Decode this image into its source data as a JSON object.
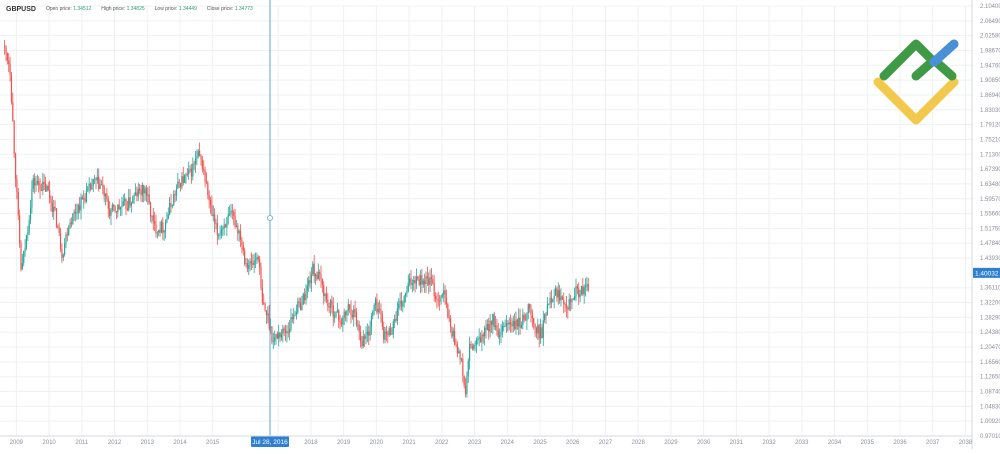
{
  "header": {
    "symbol": "GBPUSD",
    "open_label": "Open price:",
    "open_value": "1.34512",
    "high_label": "High price:",
    "high_value": "1.34825",
    "low_label": "Low price:",
    "low_value": "1.34449",
    "close_label": "Close price:",
    "close_value": "1.34773"
  },
  "colors": {
    "up": "#26a69a",
    "down": "#ef5350",
    "crosshair": "#5aa6e0",
    "price_badge": "#2f80d1",
    "grid": "#eef0f3",
    "axis_text": "#8a8f99",
    "logo_green": "#3f9a46",
    "logo_yellow": "#f2c94c",
    "logo_blue": "#4a90d9"
  },
  "chart_data": {
    "type": "candlestick",
    "title": "GBPUSD",
    "timeframe": "monthly",
    "x_ticks": [
      "2009",
      "2010",
      "2011",
      "2012",
      "2013",
      "2014",
      "2015",
      "Jul 28, 2016",
      "2018",
      "2019",
      "2020",
      "2021",
      "2022",
      "2023",
      "2024",
      "2025",
      "2026",
      "2027",
      "2028",
      "2029",
      "2030",
      "2031",
      "2032",
      "2033",
      "2034",
      "2035",
      "2036",
      "2037",
      "2038"
    ],
    "y_ticks": [
      "2.10400",
      "2.06490",
      "2.02580",
      "1.98670",
      "1.94760",
      "1.90850",
      "1.86940",
      "1.83030",
      "1.79120",
      "1.75210",
      "1.71300",
      "1.67390",
      "1.63480",
      "1.59570",
      "1.55660",
      "1.51750",
      "1.47840",
      "1.43930",
      "1.40032",
      "1.36110",
      "1.32200",
      "1.28290",
      "1.24380",
      "1.20470",
      "1.16560",
      "1.12650",
      "1.08740",
      "1.04830",
      "1.00920",
      "0.97010"
    ],
    "ylim": [
      0.9701,
      2.104
    ],
    "xlim": [
      2008.5,
      2038.2
    ],
    "grid": true,
    "current_price": "1.40032",
    "crosshair_date": "Jul 28, 2016",
    "anchors": [
      [
        2008.6,
        2.0
      ],
      [
        2008.8,
        1.95
      ],
      [
        2008.95,
        1.7
      ],
      [
        2009.15,
        1.4
      ],
      [
        2009.35,
        1.52
      ],
      [
        2009.5,
        1.64
      ],
      [
        2009.75,
        1.63
      ],
      [
        2009.95,
        1.62
      ],
      [
        2010.2,
        1.55
      ],
      [
        2010.4,
        1.45
      ],
      [
        2010.6,
        1.53
      ],
      [
        2010.85,
        1.57
      ],
      [
        2011.15,
        1.61
      ],
      [
        2011.4,
        1.64
      ],
      [
        2011.6,
        1.63
      ],
      [
        2011.85,
        1.56
      ],
      [
        2012.1,
        1.57
      ],
      [
        2012.4,
        1.58
      ],
      [
        2012.7,
        1.61
      ],
      [
        2012.95,
        1.62
      ],
      [
        2013.2,
        1.52
      ],
      [
        2013.5,
        1.52
      ],
      [
        2013.8,
        1.6
      ],
      [
        2014.0,
        1.64
      ],
      [
        2014.3,
        1.66
      ],
      [
        2014.55,
        1.71
      ],
      [
        2014.7,
        1.68
      ],
      [
        2014.95,
        1.56
      ],
      [
        2015.15,
        1.5
      ],
      [
        2015.35,
        1.53
      ],
      [
        2015.6,
        1.55
      ],
      [
        2015.85,
        1.5
      ],
      [
        2016.0,
        1.43
      ],
      [
        2016.2,
        1.42
      ],
      [
        2016.4,
        1.45
      ],
      [
        2016.5,
        1.32
      ],
      [
        2016.7,
        1.28
      ],
      [
        2016.85,
        1.22
      ],
      [
        2017.0,
        1.24
      ],
      [
        2017.3,
        1.25
      ],
      [
        2017.5,
        1.3
      ],
      [
        2017.7,
        1.32
      ],
      [
        2017.85,
        1.35
      ],
      [
        2018.05,
        1.41
      ],
      [
        2018.3,
        1.38
      ],
      [
        2018.5,
        1.32
      ],
      [
        2018.7,
        1.3
      ],
      [
        2018.95,
        1.27
      ],
      [
        2019.15,
        1.31
      ],
      [
        2019.35,
        1.29
      ],
      [
        2019.55,
        1.22
      ],
      [
        2019.75,
        1.24
      ],
      [
        2019.95,
        1.32
      ],
      [
        2020.1,
        1.3
      ],
      [
        2020.25,
        1.23
      ],
      [
        2020.45,
        1.25
      ],
      [
        2020.65,
        1.3
      ],
      [
        2020.85,
        1.33
      ],
      [
        2021.0,
        1.37
      ],
      [
        2021.2,
        1.39
      ],
      [
        2021.45,
        1.38
      ],
      [
        2021.65,
        1.38
      ],
      [
        2021.85,
        1.33
      ],
      [
        2022.05,
        1.35
      ],
      [
        2022.25,
        1.26
      ],
      [
        2022.45,
        1.21
      ],
      [
        2022.6,
        1.16
      ],
      [
        2022.72,
        1.08
      ],
      [
        2022.85,
        1.2
      ],
      [
        2023.05,
        1.21
      ],
      [
        2023.3,
        1.24
      ],
      [
        2023.55,
        1.28
      ],
      [
        2023.75,
        1.22
      ],
      [
        2023.95,
        1.27
      ],
      [
        2024.2,
        1.26
      ],
      [
        2024.45,
        1.27
      ],
      [
        2024.65,
        1.31
      ],
      [
        2024.85,
        1.25
      ],
      [
        2025.05,
        1.24
      ],
      [
        2025.25,
        1.33
      ],
      [
        2025.45,
        1.35
      ],
      [
        2025.65,
        1.34
      ],
      [
        2025.85,
        1.32
      ],
      [
        2026.05,
        1.35
      ],
      [
        2026.25,
        1.35
      ],
      [
        2026.5,
        1.36
      ]
    ]
  }
}
